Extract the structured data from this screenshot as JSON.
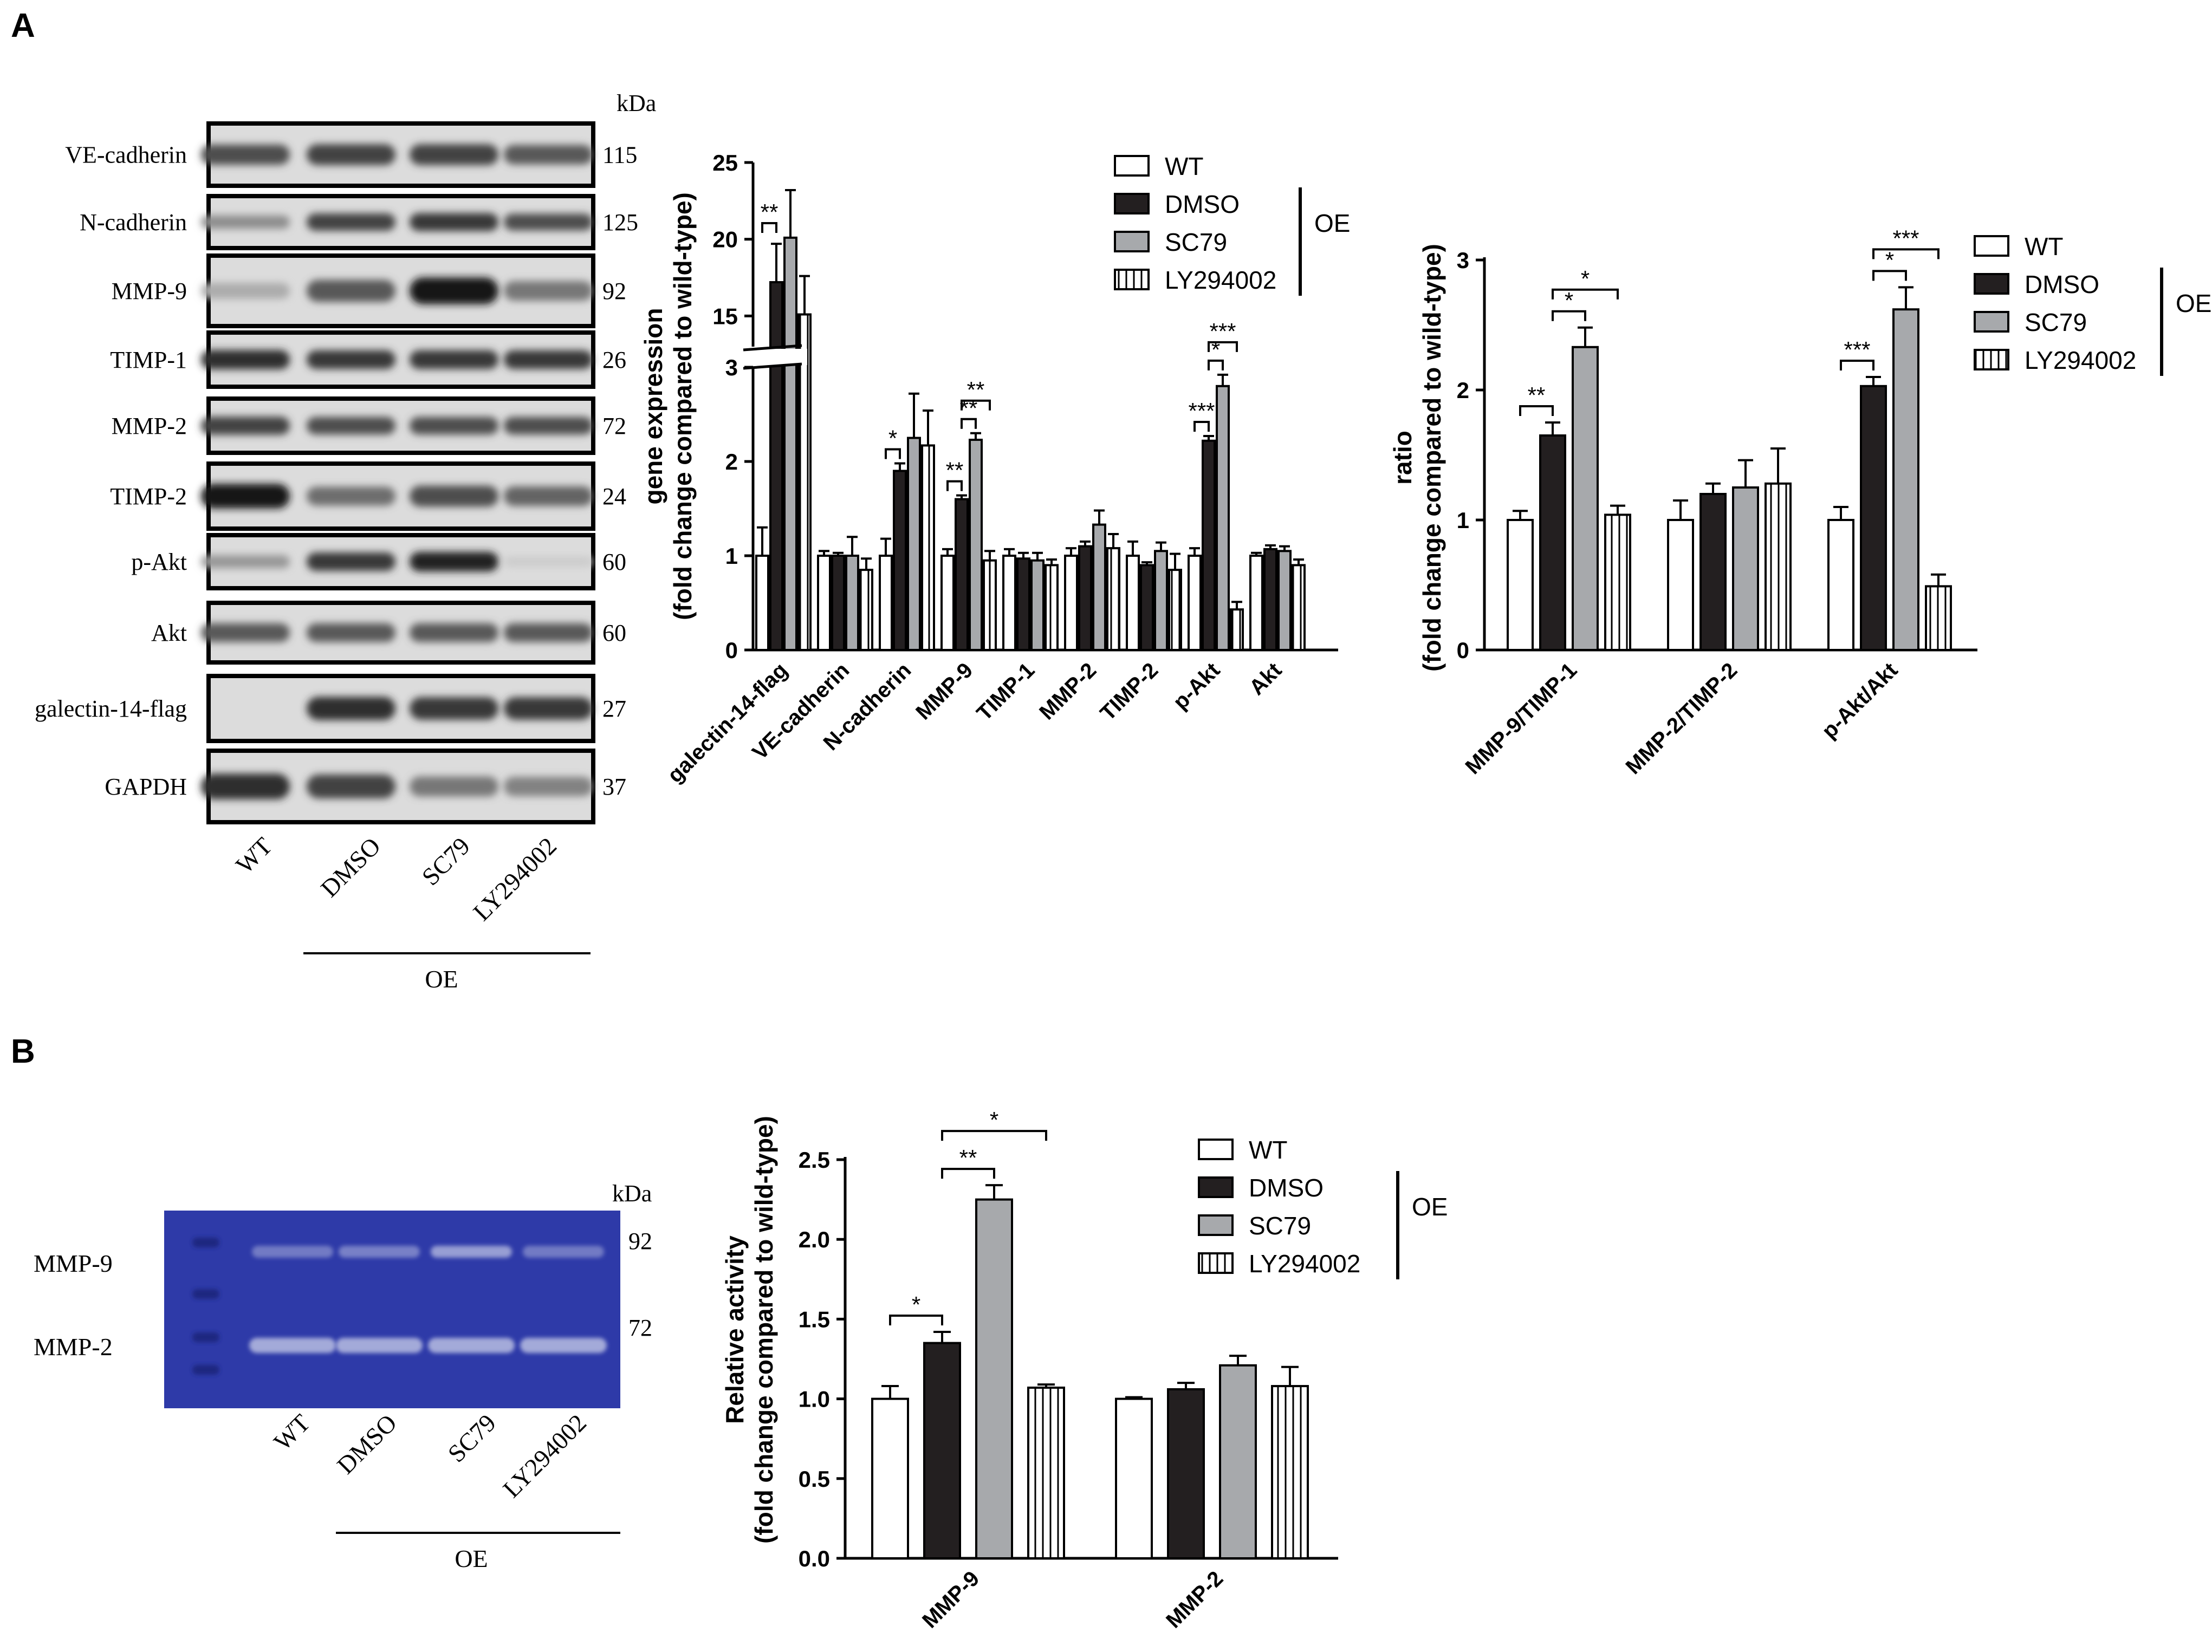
{
  "panels": {
    "a_label": "A",
    "b_label": "B"
  },
  "blot": {
    "kda_label": "kDa",
    "rows": [
      {
        "label": "VE-cadherin",
        "kda": "115"
      },
      {
        "label": "N-cadherin",
        "kda": "125"
      },
      {
        "label": "MMP-9",
        "kda": "92"
      },
      {
        "label": "TIMP-1",
        "kda": "26"
      },
      {
        "label": "MMP-2",
        "kda": "72"
      },
      {
        "label": "TIMP-2",
        "kda": "24"
      },
      {
        "label": "p-Akt",
        "kda": "60"
      },
      {
        "label": "Akt",
        "kda": "60"
      },
      {
        "label": "galectin-14-flag",
        "kda": "27"
      },
      {
        "label": "GAPDH",
        "kda": "37"
      }
    ],
    "band_intensity": [
      [
        0.75,
        0.8,
        0.8,
        0.7
      ],
      [
        0.45,
        0.8,
        0.85,
        0.75
      ],
      [
        0.3,
        0.7,
        1.0,
        0.55
      ],
      [
        0.9,
        0.85,
        0.85,
        0.85
      ],
      [
        0.8,
        0.75,
        0.75,
        0.75
      ],
      [
        1.0,
        0.6,
        0.75,
        0.65
      ],
      [
        0.4,
        0.85,
        0.95,
        0.15
      ],
      [
        0.7,
        0.7,
        0.7,
        0.7
      ],
      [
        0.0,
        0.9,
        0.85,
        0.85
      ],
      [
        0.9,
        0.8,
        0.55,
        0.5
      ]
    ],
    "lanes": [
      "WT",
      "DMSO",
      "SC79",
      "LY294002"
    ],
    "oe_label": "OE"
  },
  "zymo": {
    "kda_label": "kDa",
    "rows": [
      {
        "label": "MMP-9",
        "kda": "92"
      },
      {
        "label": "MMP-2",
        "kda": "72"
      }
    ],
    "lanes": [
      "WT",
      "DMSO",
      "SC79",
      "LY294002"
    ],
    "oe_label": "OE",
    "colors": {
      "gel": "#2e3aa8",
      "band": "#aab0dc",
      "marker": "#1c2580"
    }
  },
  "legend": {
    "items": [
      "WT",
      "DMSO",
      "SC79",
      "LY294002"
    ],
    "oe_label": "OE"
  },
  "colors": {
    "WT": "#ffffff",
    "DMSO": "#231f20",
    "SC79": "#a7a9ac",
    "LY294002": "#ffffff"
  },
  "chart_data": [
    {
      "type": "bar",
      "panel": "A",
      "categories": [
        "galectin-14-flag",
        "VE-cadherin",
        "N-cadherin",
        "MMP-9",
        "TIMP-1",
        "MMP-2",
        "TIMP-2",
        "p-Akt",
        "Akt"
      ],
      "series": [
        {
          "name": "WT",
          "values": [
            1.0,
            1.0,
            1.0,
            1.0,
            1.0,
            1.0,
            1.0,
            1.0,
            1.0
          ],
          "errors": [
            0.3,
            0.05,
            0.18,
            0.07,
            0.07,
            0.08,
            0.15,
            0.08,
            0.03
          ]
        },
        {
          "name": "DMSO",
          "values": [
            17.2,
            1.0,
            1.9,
            1.6,
            0.97,
            1.1,
            0.9,
            2.22,
            1.07
          ]
        },
        {
          "name": "SC79",
          "values": [
            20.1,
            1.0,
            2.25,
            2.23,
            0.95,
            1.33,
            1.05,
            2.8,
            1.05
          ],
          "errors": [
            3.1,
            0.2,
            0.47,
            0.07,
            0.08,
            0.15,
            0.09,
            0.12,
            0.05
          ]
        },
        {
          "name": "LY294002",
          "values": [
            15.1,
            0.85,
            2.17,
            0.95,
            0.9,
            1.08,
            0.85,
            0.43,
            0.9
          ],
          "errors": [
            2.5,
            0.12,
            0.37,
            0.1,
            0.06,
            0.15,
            0.17,
            0.08,
            0.06
          ]
        }
      ],
      "dmso_errors": [
        2.5,
        0.03,
        0.08,
        0.04,
        0.06,
        0.05,
        0.03,
        0.05,
        0.04
      ],
      "ylabel_lines": [
        "gene expression",
        "(fold change compared to wild-type)"
      ],
      "y_axis_break": true,
      "lower_ylim": [
        0,
        3
      ],
      "upper_ylim": [
        13,
        25
      ],
      "lower_ticks": [
        "0",
        "1",
        "2",
        "3"
      ],
      "upper_ticks": [
        "15",
        "20",
        "25"
      ],
      "significance": [
        {
          "category": 0,
          "from": 0,
          "to": 1,
          "label": "**"
        },
        {
          "category": 2,
          "from": 0,
          "to": 1,
          "label": "*"
        },
        {
          "category": 3,
          "from": 0,
          "to": 1,
          "label": "**"
        },
        {
          "category": 3,
          "from": 1,
          "to": 2,
          "label": "**"
        },
        {
          "category": 3,
          "from": 1,
          "to": 3,
          "label": "**"
        },
        {
          "category": 7,
          "from": 0,
          "to": 1,
          "label": "***"
        },
        {
          "category": 7,
          "from": 1,
          "to": 2,
          "label": "*"
        },
        {
          "category": 7,
          "from": 1,
          "to": 3,
          "label": "***"
        }
      ]
    },
    {
      "type": "bar",
      "panel": "A",
      "categories": [
        "MMP-9/TIMP-1",
        "MMP-2/TIMP-2",
        "p-Akt/Akt"
      ],
      "series": [
        {
          "name": "WT",
          "values": [
            1.0,
            1.0,
            1.0
          ],
          "errors": [
            0.07,
            0.15,
            0.1
          ]
        },
        {
          "name": "DMSO",
          "values": [
            1.65,
            1.2,
            2.03
          ],
          "errors": [
            0.1,
            0.08,
            0.07
          ]
        },
        {
          "name": "SC79",
          "values": [
            2.33,
            1.25,
            2.62
          ],
          "errors": [
            0.15,
            0.21,
            0.17
          ]
        },
        {
          "name": "LY294002",
          "values": [
            1.04,
            1.28,
            0.49
          ],
          "errors": [
            0.07,
            0.27,
            0.09
          ]
        }
      ],
      "ylabel_lines": [
        "ratio",
        "(fold change compared to wild-type)"
      ],
      "ylim": [
        0,
        3
      ],
      "yticks": [
        "0",
        "1",
        "2",
        "3"
      ],
      "significance": [
        {
          "category": 0,
          "from": 0,
          "to": 1,
          "label": "**"
        },
        {
          "category": 0,
          "from": 1,
          "to": 2,
          "label": "*"
        },
        {
          "category": 0,
          "from": 1,
          "to": 3,
          "label": "*"
        },
        {
          "category": 2,
          "from": 0,
          "to": 1,
          "label": "***"
        },
        {
          "category": 2,
          "from": 1,
          "to": 2,
          "label": "*"
        },
        {
          "category": 2,
          "from": 1,
          "to": 3,
          "label": "***"
        }
      ]
    },
    {
      "type": "bar",
      "panel": "B",
      "categories": [
        "MMP-9",
        "MMP-2"
      ],
      "series": [
        {
          "name": "WT",
          "values": [
            1.0,
            1.0
          ],
          "errors": [
            0.08,
            0.01
          ]
        },
        {
          "name": "DMSO",
          "values": [
            1.35,
            1.06
          ],
          "errors": [
            0.07,
            0.04
          ]
        },
        {
          "name": "SC79",
          "values": [
            2.25,
            1.21
          ],
          "errors": [
            0.09,
            0.06
          ]
        },
        {
          "name": "LY294002",
          "values": [
            1.07,
            1.08
          ],
          "errors": [
            0.02,
            0.12
          ]
        }
      ],
      "ylabel_lines": [
        "Relative activity",
        "(fold change compared to wild-type)"
      ],
      "ylim": [
        0,
        2.5
      ],
      "yticks": [
        "0.0",
        "0.5",
        "1.0",
        "1.5",
        "2.0",
        "2.5"
      ],
      "significance": [
        {
          "category": 0,
          "from": 0,
          "to": 1,
          "label": "*"
        },
        {
          "category": 0,
          "from": 1,
          "to": 2,
          "label": "**"
        },
        {
          "category": 0,
          "from": 1,
          "to": 3,
          "label": "*"
        }
      ]
    }
  ]
}
